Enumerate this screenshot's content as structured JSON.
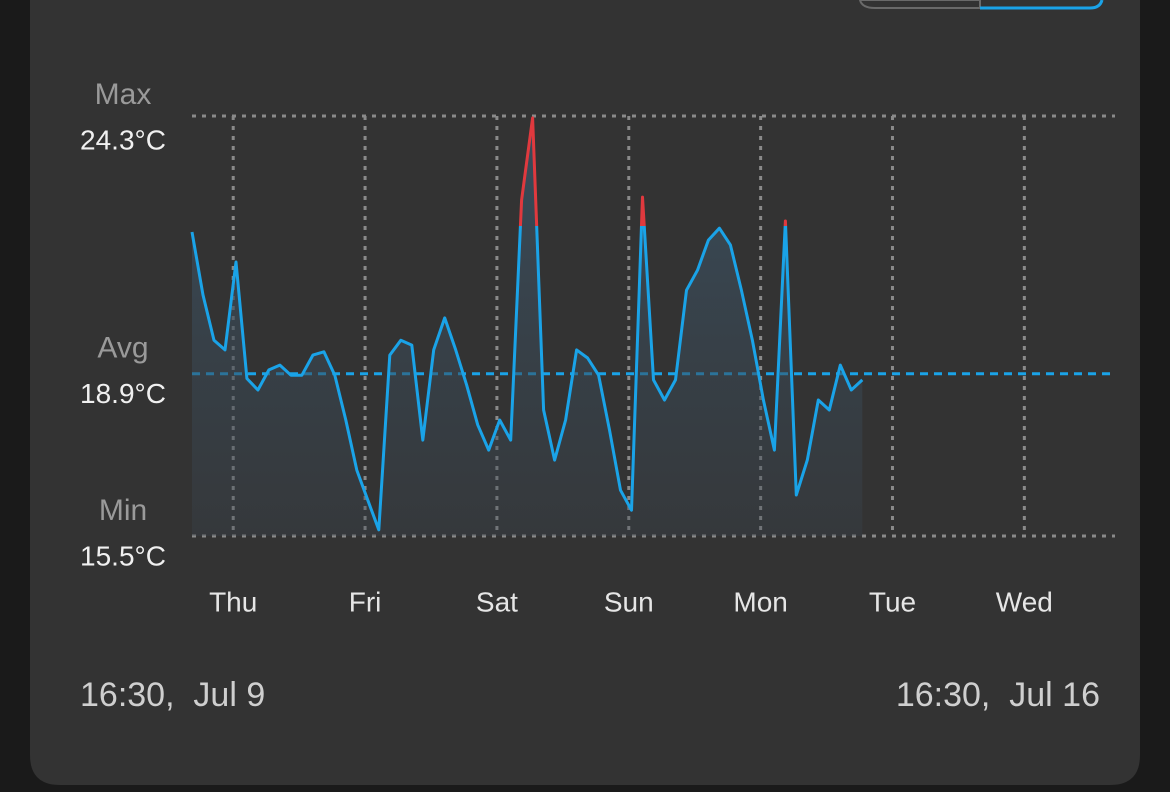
{
  "chart_data": {
    "type": "line",
    "x": [
      0,
      2,
      4,
      6,
      8,
      10,
      12,
      14,
      16,
      18,
      20,
      22,
      24,
      26,
      28,
      30,
      32,
      34,
      36,
      38,
      40,
      42,
      44,
      46,
      48,
      50,
      52,
      54,
      56,
      58,
      60,
      62,
      64,
      66,
      68,
      70,
      72,
      74,
      76,
      78,
      80,
      82,
      84,
      86,
      88,
      90,
      92,
      94,
      96,
      98,
      100,
      102,
      104,
      106,
      108,
      110,
      112,
      114,
      116,
      118,
      120,
      122
    ],
    "values": [
      21.87,
      20.55,
      19.6,
      19.4,
      21.24,
      18.8,
      18.56,
      18.98,
      19.08,
      18.87,
      18.87,
      19.29,
      19.36,
      18.87,
      17.93,
      16.88,
      16.25,
      15.63,
      19.29,
      19.6,
      19.5,
      17.51,
      19.4,
      20.07,
      19.4,
      18.66,
      17.83,
      17.3,
      17.93,
      17.51,
      22.54,
      24.26,
      18.14,
      17.09,
      17.93,
      19.4,
      19.23,
      18.87,
      17.72,
      16.46,
      16.04,
      22.6,
      18.77,
      18.35,
      18.77,
      20.65,
      21.07,
      21.7,
      21.95,
      21.6,
      20.65,
      19.6,
      18.35,
      17.3,
      22.1,
      16.36,
      17.09,
      18.35,
      18.14,
      19.08,
      18.56,
      18.77
    ],
    "color": "#1aa3e8",
    "highlight_above": 22,
    "highlight_color": "#e0393e",
    "xlim": [
      0,
      168
    ],
    "ylim": [
      15.5,
      24.3
    ],
    "xticks": [
      {
        "value": 7.5,
        "label": "Thu"
      },
      {
        "value": 31.5,
        "label": "Fri"
      },
      {
        "value": 55.5,
        "label": "Sat"
      },
      {
        "value": 79.5,
        "label": "Sun"
      },
      {
        "value": 103.5,
        "label": "Mon"
      },
      {
        "value": 127.5,
        "label": "Tue"
      },
      {
        "value": 151.5,
        "label": "Wed"
      }
    ],
    "reference_lines": [
      {
        "label": "Max",
        "value": 24.3,
        "value_label": "24.3°C",
        "color": "#8a8a8a"
      },
      {
        "label": "Avg",
        "value": 18.9,
        "value_label": "18.9°C",
        "color": "#1aa3e8"
      },
      {
        "label": "Min",
        "value": 15.5,
        "value_label": "15.5°C",
        "color": "#8a8a8a"
      }
    ],
    "start_label": "16:30,  Jul 9",
    "end_label": "16:30,  Jul 16"
  }
}
